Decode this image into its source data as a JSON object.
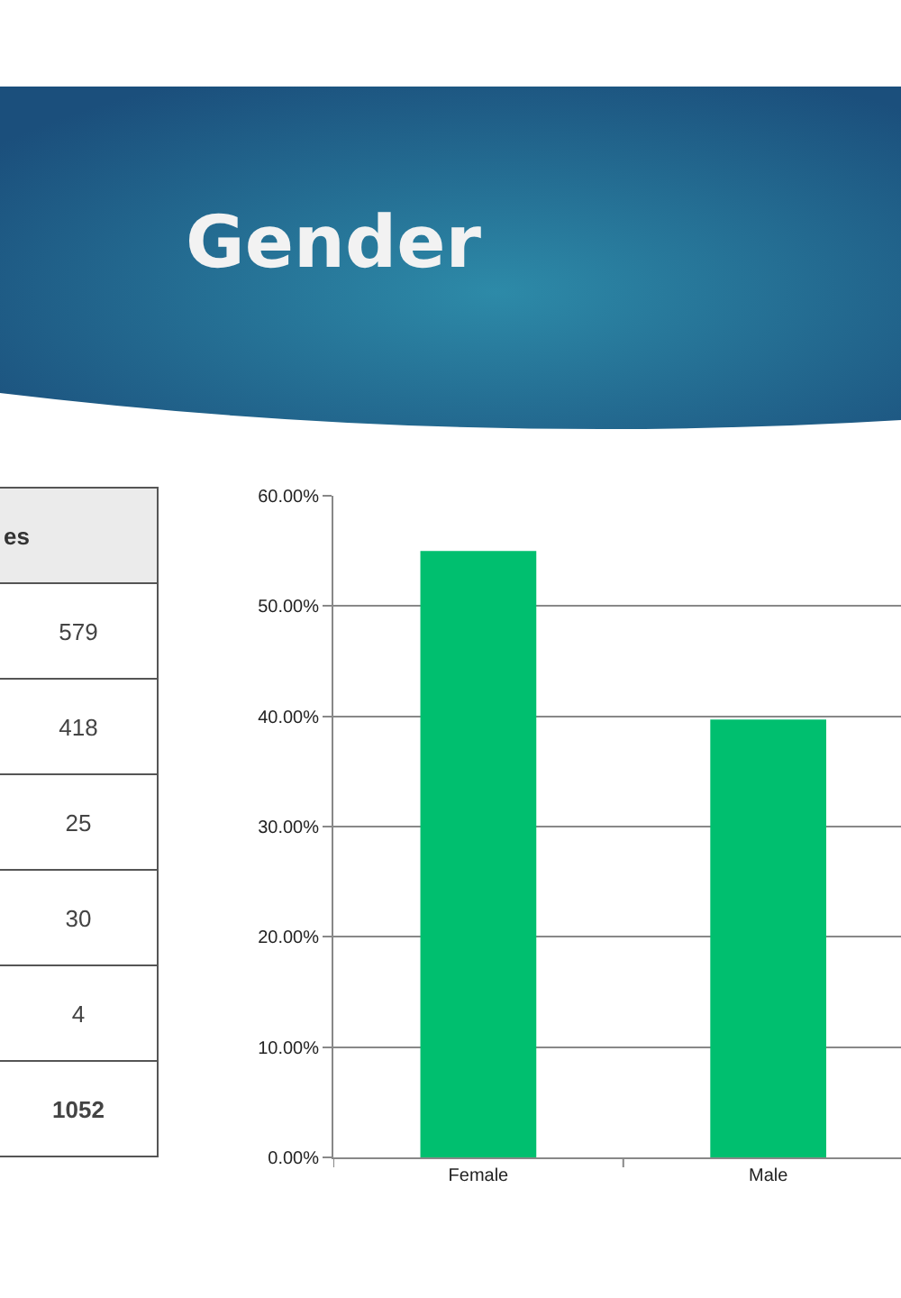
{
  "chart_data": [
    {
      "type": "other",
      "title": "Gender",
      "xlabel": "es",
      "categories": [
        null,
        null,
        null,
        null,
        null,
        null
      ],
      "values": [
        579,
        418,
        25,
        30,
        4,
        1052
      ],
      "value_labels": [
        "579",
        "418",
        "25",
        "30",
        "4",
        "1052"
      ]
    },
    {
      "type": "bar",
      "categories": [
        "Female",
        "Male"
      ],
      "values": [
        55.0,
        39.7
      ],
      "color": "#00bf6f",
      "ylim": [
        0,
        60
      ],
      "yticks": [
        {
          "value": 0,
          "label": "0.00%"
        },
        {
          "value": 10,
          "label": "10.00%"
        },
        {
          "value": 20,
          "label": "20.00%"
        },
        {
          "value": 30,
          "label": "30.00%"
        },
        {
          "value": 40,
          "label": "40.00%"
        },
        {
          "value": 50,
          "label": "50.00%"
        },
        {
          "value": 60,
          "label": "60.00%"
        }
      ],
      "grid": "y"
    }
  ]
}
